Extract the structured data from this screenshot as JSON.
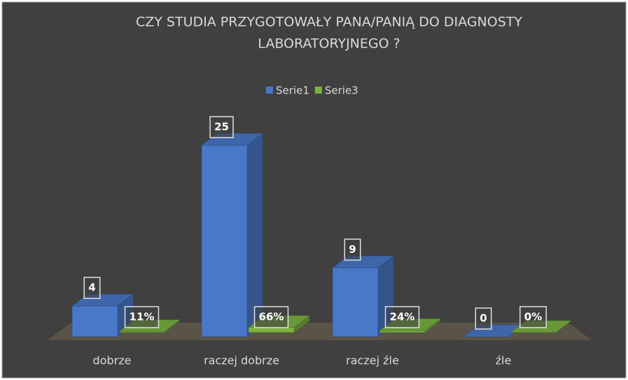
{
  "chart_data": {
    "type": "bar3d",
    "title": [
      "CZY STUDIA PRZYGOTOWAŁY PANA/PANIĄ DO DIAGNOSTY",
      "LABORATORYJNEGO ?"
    ],
    "categories": [
      "dobrze",
      "raczej dobrze",
      "raczej źle",
      "źle"
    ],
    "series": [
      {
        "name": "Serie1",
        "color": "#4a78c8",
        "values": [
          4,
          25,
          9,
          0
        ]
      },
      {
        "name": "Serie3",
        "color": "#7cb342",
        "values": [
          0.11,
          0.66,
          0.24,
          0
        ],
        "value_labels": [
          "11%",
          "66%",
          "24%",
          "0%"
        ]
      }
    ],
    "legend": "top"
  }
}
